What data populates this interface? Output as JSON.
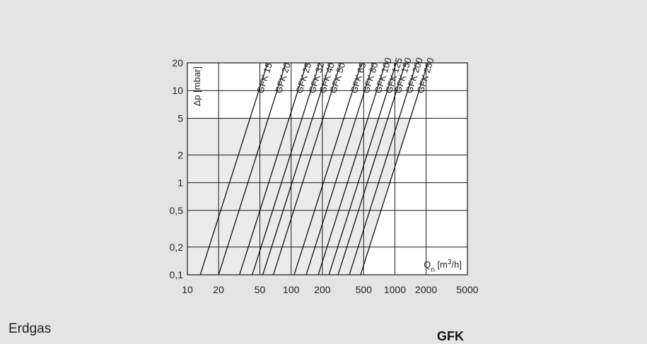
{
  "caption": "Erdgas",
  "product": "GFK",
  "chart_data": {
    "type": "line",
    "x_scale": "log",
    "y_scale": "log",
    "xlim": [
      10,
      5000
    ],
    "ylim": [
      0.1,
      20
    ],
    "xlabel": "Qn [m3/h]",
    "ylabel": "Δp [mbar]",
    "x_ticks": [
      10,
      20,
      50,
      100,
      200,
      500,
      1000,
      2000,
      5000
    ],
    "x_tick_labels": [
      "10",
      "20",
      "50",
      "100",
      "200",
      "500",
      "1000",
      "2000",
      "5000"
    ],
    "y_ticks": [
      0.1,
      0.2,
      0.5,
      1,
      2,
      5,
      10,
      20
    ],
    "y_tick_labels": [
      "0,1",
      "0,2",
      "0,5",
      "1",
      "2",
      "5",
      "10",
      "20"
    ],
    "grid": true,
    "shaded_region_y_max": 5,
    "series": [
      {
        "name": "GFK 15",
        "points": [
          [
            13.3,
            0.1
          ],
          [
            59.4,
            20
          ]
        ]
      },
      {
        "name": "GFK 20",
        "points": [
          [
            20.0,
            0.1
          ],
          [
            89.0,
            20
          ]
        ]
      },
      {
        "name": "GFK 25",
        "points": [
          [
            31.8,
            0.1
          ],
          [
            141.4,
            20
          ]
        ]
      },
      {
        "name": "GFK 32",
        "points": [
          [
            42.2,
            0.1
          ],
          [
            188.0,
            20
          ]
        ]
      },
      {
        "name": "GFK 40",
        "points": [
          [
            53.3,
            0.1
          ],
          [
            237.1,
            20
          ]
        ]
      },
      {
        "name": "GFK 50",
        "points": [
          [
            67.4,
            0.1
          ],
          [
            300.2,
            20
          ]
        ]
      },
      {
        "name": "GFK 65",
        "points": [
          [
            107.0,
            0.1
          ],
          [
            476.0,
            20
          ]
        ]
      },
      {
        "name": "GFK 80",
        "points": [
          [
            139.8,
            0.1
          ],
          [
            622.0,
            20
          ]
        ]
      },
      {
        "name": "GFK 100",
        "points": [
          [
            182.5,
            0.1
          ],
          [
            812.0,
            20
          ]
        ]
      },
      {
        "name": "GFK 125",
        "points": [
          [
            231.4,
            0.1
          ],
          [
            1030.0,
            20
          ]
        ]
      },
      {
        "name": "GFK 150",
        "points": [
          [
            283.6,
            0.1
          ],
          [
            1262.0,
            20
          ]
        ]
      },
      {
        "name": "GFK 200",
        "points": [
          [
            364.0,
            0.1
          ],
          [
            1620.0,
            20
          ]
        ]
      },
      {
        "name": "GFK 250",
        "points": [
          [
            467.5,
            0.1
          ],
          [
            2080.0,
            20
          ]
        ]
      }
    ]
  }
}
